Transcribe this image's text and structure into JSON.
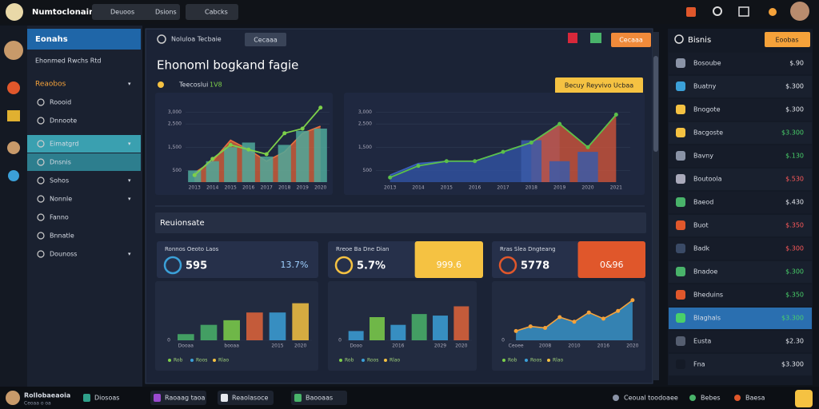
{
  "topbar": {
    "brand": "Numtoclonair",
    "tabs": [
      "Deuoos",
      "Dsions",
      "Cabcks"
    ]
  },
  "sidebar": {
    "title": "Eonahs",
    "subtitle": "Ehonmed Rwchs Rtd",
    "items": [
      {
        "label": "Reaobos",
        "group": true
      },
      {
        "label": "Roooid"
      },
      {
        "label": "Dnnoote"
      },
      {
        "label": "Eimatgrd",
        "active": true
      },
      {
        "label": "Dnsnis",
        "selected": true
      },
      {
        "label": "Sohos"
      },
      {
        "label": "Nonnle"
      },
      {
        "label": "Fanno"
      },
      {
        "label": "Bnnatle"
      },
      {
        "label": "Dounoss"
      }
    ]
  },
  "main": {
    "tab": "Noluloa Tecbaie",
    "tab_button": "Cecaaa",
    "title": "Ehonoml bogkand fagie",
    "subtitle": "Teecoslui",
    "badge": "1V8",
    "action": "Becuy Reyvivo Ucbaa",
    "section": "Reuionsate"
  },
  "cards": [
    {
      "title": "Ronnos Oeoto Laos",
      "value": "595",
      "side": "13.7%"
    },
    {
      "title": "Rreoe Ba Dne Dian",
      "value": "5.7%",
      "side": "999.6",
      "accent": "#f5c242"
    },
    {
      "title": "Rras Slea Dngteang",
      "value": "5778",
      "side": "0&96",
      "accent": "#e0572b"
    }
  ],
  "charts": [
    {
      "type": "combo",
      "categories": [
        "2013",
        "2014",
        "2015",
        "2016",
        "2017",
        "2018",
        "2019",
        "2020"
      ],
      "ylim": [
        0,
        3500
      ],
      "yticks": [
        500,
        {
          "value": 1500,
          "label": "1,500"
        },
        {
          "value": 2500,
          "label": "2,500"
        },
        {
          "value": 3000,
          "label": "3,000"
        }
      ],
      "series": [
        {
          "kind": "area",
          "color": "#e0643a",
          "line_color": "#e8703e",
          "values": [
            400,
            900,
            1800,
            1400,
            900,
            1300,
            2100,
            2400
          ]
        },
        {
          "kind": "bar",
          "color": "#4fa89a",
          "values": [
            500,
            900,
            1500,
            1700,
            1100,
            1600,
            2200,
            2300
          ]
        },
        {
          "kind": "line",
          "color": "#7dd04a",
          "markers": true,
          "values": [
            300,
            1000,
            1600,
            1400,
            1200,
            2100,
            2300,
            3200
          ]
        }
      ]
    },
    {
      "type": "combo",
      "categories": [
        "2013",
        "2014",
        "2015",
        "2016",
        "2017",
        "2018",
        "2019",
        "2020",
        "2021"
      ],
      "ylim": [
        0,
        3500
      ],
      "yticks": [
        500,
        {
          "value": 1500,
          "label": "1,500"
        },
        {
          "value": 2500,
          "label": "2,500"
        },
        {
          "value": 3000,
          "label": "3,000"
        }
      ],
      "series": [
        {
          "kind": "area",
          "color": "#3355aa",
          "line_color": "#3b62c0",
          "values": [
            300,
            800,
            900,
            900,
            1300,
            1700,
            2500,
            null,
            null
          ]
        },
        {
          "kind": "area",
          "color": "#d9573a",
          "line_color": "#e07a3a",
          "values": [
            null,
            null,
            null,
            null,
            null,
            1700,
            2500,
            1500,
            2900
          ]
        },
        {
          "kind": "bar",
          "color": "#3b5aa8",
          "values": [
            null,
            null,
            null,
            null,
            null,
            1800,
            900,
            1300,
            null
          ]
        },
        {
          "kind": "line",
          "color": "#5bc04a",
          "markers": true,
          "values": [
            200,
            700,
            900,
            900,
            1300,
            1700,
            2500,
            1500,
            2900
          ]
        }
      ]
    },
    {
      "type": "combo",
      "categories": [
        "Dooaa",
        null,
        "booaa",
        null,
        "2015",
        "2020"
      ],
      "ylim": [
        0,
        3000
      ],
      "yticks": [
        0
      ],
      "legend": [
        "Rob",
        "Roos",
        "Rlao"
      ],
      "series": [
        {
          "kind": "bar",
          "colors": [
            "#49b36a",
            "#49b36a",
            "#7dd04a",
            "#e0643a",
            "#3ba0d8",
            "#f5c242"
          ],
          "values": [
            400,
            1000,
            1300,
            1800,
            1800,
            2400
          ]
        }
      ]
    },
    {
      "type": "combo",
      "categories": [
        "Dooo",
        null,
        "2016",
        null,
        "2029",
        "2020"
      ],
      "ylim": [
        0,
        3000
      ],
      "yticks": [
        0
      ],
      "legend": [
        "Rob",
        "Roos",
        "Rlao"
      ],
      "series": [
        {
          "kind": "bar",
          "colors": [
            "#3ba0d8",
            "#7dd04a",
            "#3ba0d8",
            "#49b36a",
            "#3ba0d8",
            "#e0643a"
          ],
          "values": [
            600,
            1500,
            1000,
            1700,
            1600,
            2200
          ]
        }
      ]
    },
    {
      "type": "combo",
      "categories": [
        "Ceoee",
        null,
        "2008",
        null,
        "2010",
        null,
        "2016",
        null,
        "2020"
      ],
      "ylim": [
        0,
        3000
      ],
      "yticks": [
        0
      ],
      "legend": [
        "Rob",
        "Roos",
        "Rlao"
      ],
      "series": [
        {
          "kind": "area",
          "color": "#3ba0d8",
          "line_color": "#f5a23a",
          "markers": true,
          "values": [
            600,
            900,
            800,
            1500,
            1200,
            1800,
            1400,
            1900,
            2600
          ]
        }
      ]
    }
  ],
  "right": {
    "title": "Bisnis",
    "button": "Eoobas",
    "rows": [
      {
        "label": "Bosoube",
        "value": "$.90",
        "tone": "white"
      },
      {
        "label": "Buatny",
        "value": "$.300",
        "tone": "white"
      },
      {
        "label": "Bnogote",
        "value": "$.300",
        "tone": "white"
      },
      {
        "label": "Bacgoste",
        "value": "$3.300",
        "tone": "green"
      },
      {
        "label": "Bavny",
        "value": "$.130",
        "tone": "green"
      },
      {
        "label": "Boutoola",
        "value": "$.530",
        "tone": "red"
      },
      {
        "label": "Baeod",
        "value": "$.430",
        "tone": "white"
      },
      {
        "label": "Buot",
        "value": "$.350",
        "tone": "red"
      },
      {
        "label": "Badk",
        "value": "$.300",
        "tone": "red"
      },
      {
        "label": "Bnadoe",
        "value": "$.300",
        "tone": "green"
      },
      {
        "label": "Bheduins",
        "value": "$.350",
        "tone": "green"
      },
      {
        "label": "Blaghals",
        "value": "$3.300",
        "tone": "green",
        "highlight": true
      },
      {
        "label": "Eusta",
        "value": "$2.30",
        "tone": "white"
      },
      {
        "label": "Fna",
        "value": "$3.300",
        "tone": "white"
      }
    ]
  },
  "taskbar": {
    "user": "Rollobaeaoia",
    "user_sub": "Ceoaa o oa",
    "tabs": [
      "Diosoas",
      "Raoaag taoa",
      "Reaolasoce",
      "Baooaas"
    ],
    "status": [
      "Ceoual toodoaee",
      "Bebes",
      "Baesa"
    ]
  }
}
